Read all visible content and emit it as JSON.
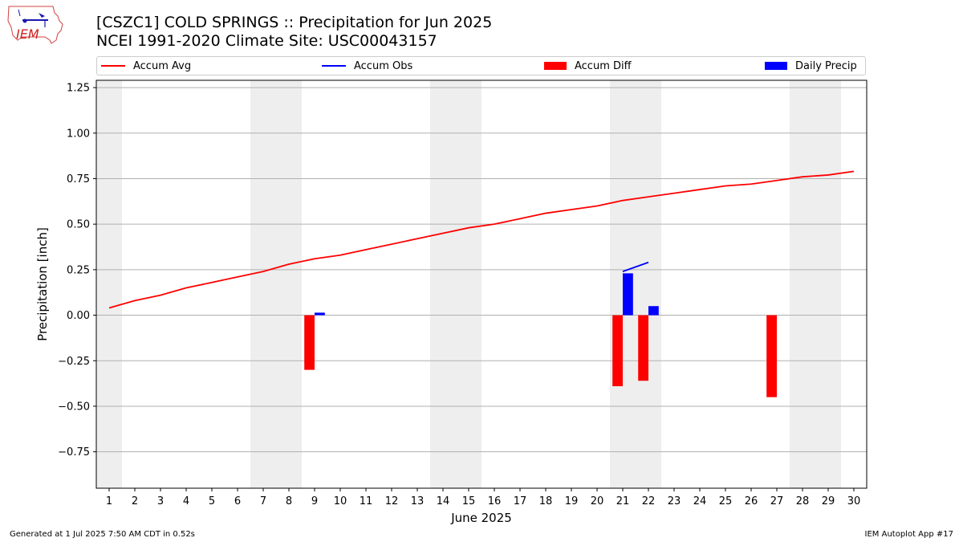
{
  "logo": {
    "text": "IEM"
  },
  "header": {
    "title": "[CSZC1] COLD SPRINGS :: Precipitation for Jun 2025",
    "subtitle": "NCEI 1991-2020 Climate Site: USC00043157"
  },
  "legend": {
    "items": [
      {
        "label": "Accum Avg",
        "kind": "line",
        "color": "#ff0000"
      },
      {
        "label": "Accum Obs",
        "kind": "line",
        "color": "#0000ff"
      },
      {
        "label": "Accum Diff",
        "kind": "box",
        "color": "#ff0000"
      },
      {
        "label": "Daily Precip",
        "kind": "box",
        "color": "#0000ff"
      }
    ]
  },
  "footer": {
    "left": "Generated at 1 Jul 2025 7:50 AM CDT in 0.52s",
    "right": "IEM Autoplot App #17"
  },
  "chart_data": {
    "type": "line",
    "title": "[CSZC1] COLD SPRINGS :: Precipitation for Jun 2025",
    "subtitle": "NCEI 1991-2020 Climate Site: USC00043157",
    "xlabel": "June 2025",
    "ylabel": "Precipitation [inch]",
    "xlim": [
      0.5,
      30.5
    ],
    "ylim": [
      -0.95,
      1.29
    ],
    "x_ticks": [
      1,
      2,
      3,
      4,
      5,
      6,
      7,
      8,
      9,
      10,
      11,
      12,
      13,
      14,
      15,
      16,
      17,
      18,
      19,
      20,
      21,
      22,
      23,
      24,
      25,
      26,
      27,
      28,
      29,
      30
    ],
    "y_ticks": [
      -0.75,
      -0.5,
      -0.25,
      0.0,
      0.25,
      0.5,
      0.75,
      1.0,
      1.25
    ],
    "y_tick_labels": [
      "−0.75",
      "−0.50",
      "−0.25",
      "0.00",
      "0.25",
      "0.50",
      "0.75",
      "1.00",
      "1.25"
    ],
    "grid": "horizontal",
    "legend_position": "top",
    "weekend_days": [
      1,
      7,
      8,
      14,
      15,
      21,
      22,
      28,
      29
    ],
    "colors": {
      "avg": "#ff0000",
      "obs": "#0000ff",
      "diff": "#ff0000",
      "daily": "#0000ff",
      "weekend": "#eeeeee"
    },
    "series": [
      {
        "name": "Accum Avg",
        "kind": "line",
        "x": [
          1,
          2,
          3,
          4,
          5,
          6,
          7,
          8,
          9,
          10,
          11,
          12,
          13,
          14,
          15,
          16,
          17,
          18,
          19,
          20,
          21,
          22,
          23,
          24,
          25,
          26,
          27,
          28,
          29,
          30
        ],
        "values": [
          0.04,
          0.08,
          0.11,
          0.15,
          0.18,
          0.21,
          0.24,
          0.28,
          0.31,
          0.33,
          0.36,
          0.39,
          0.42,
          0.45,
          0.48,
          0.5,
          0.53,
          0.56,
          0.58,
          0.6,
          0.63,
          0.65,
          0.67,
          0.69,
          0.71,
          0.72,
          0.74,
          0.76,
          0.77,
          0.79
        ]
      },
      {
        "name": "Accum Obs",
        "kind": "line",
        "segments": [
          {
            "x": [
              9,
              9.4
            ],
            "values": [
              0.01,
              0.01
            ]
          },
          {
            "x": [
              21,
              22
            ],
            "values": [
              0.24,
              0.29
            ]
          }
        ]
      },
      {
        "name": "Accum Diff",
        "kind": "bar",
        "x": [
          9,
          21,
          22,
          27
        ],
        "values": [
          -0.3,
          -0.39,
          -0.36,
          -0.45
        ]
      },
      {
        "name": "Daily Precip",
        "kind": "bar",
        "x": [
          9,
          21,
          22
        ],
        "values": [
          0.01,
          0.23,
          0.05
        ]
      }
    ]
  }
}
